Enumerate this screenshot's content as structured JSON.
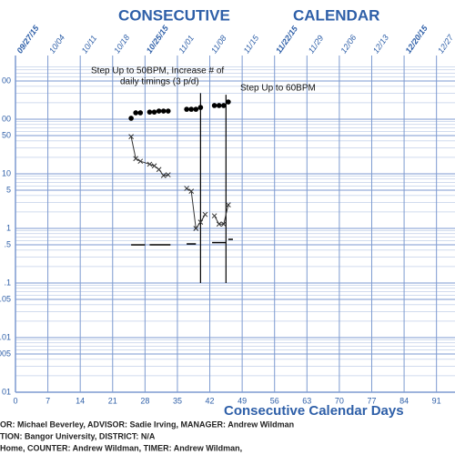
{
  "chart_data": {
    "type": "celeration",
    "title": [
      "CONSECUTIVE",
      "CALENDAR"
    ],
    "x_label": "Consecutive Calendar Days",
    "xlim": [
      0,
      95
    ],
    "xticks": [
      0,
      7,
      14,
      21,
      28,
      35,
      42,
      49,
      56,
      63,
      70,
      77,
      84,
      91
    ],
    "top_labels": [
      "09/27/15",
      "10/04",
      "10/11",
      "10/18",
      "10/25/15",
      "11/01",
      "11/08",
      "11/15",
      "11/22/15",
      "11/29",
      "12/06",
      "12/13",
      "12/20/15",
      "12/27"
    ],
    "ylim": [
      0.001,
      1000
    ],
    "log_y": true,
    "yticks": [
      {
        "value": 500,
        "label": "00"
      },
      {
        "value": 100,
        "label": "00"
      },
      50,
      10,
      5,
      1,
      {
        "value": 0.5,
        "label": ".5"
      },
      {
        "value": 0.1,
        "label": ".1"
      },
      {
        "value": 0.05,
        "label": ".05"
      },
      {
        "value": 0.01,
        "label": ".01"
      },
      {
        "value": 0.005,
        "label": ".005"
      },
      {
        "value": 0.001,
        "label": "01"
      }
    ],
    "grid": true,
    "grid_color": "#7d9ad0",
    "series": [
      {
        "marker": "dot",
        "line": false,
        "color": "#000000",
        "x": [
          25,
          26,
          27,
          29,
          30,
          31,
          32,
          33,
          37,
          38,
          39,
          40,
          43,
          44,
          45,
          46
        ],
        "values": [
          104,
          131,
          131,
          135,
          135,
          141,
          141,
          141,
          152,
          152,
          152,
          164,
          178,
          178,
          178,
          207
        ]
      },
      {
        "marker": "x",
        "line": true,
        "color": "#333333",
        "x": [
          25,
          26,
          27,
          29,
          30,
          31,
          32,
          33
        ],
        "values": [
          48,
          19,
          17,
          15,
          14,
          12,
          9.3,
          9.6
        ]
      },
      {
        "marker": "x",
        "line": true,
        "color": "#333333",
        "x": [
          37,
          38,
          39,
          40,
          41
        ],
        "values": [
          5.4,
          4.8,
          1.0,
          1.3,
          1.8
        ]
      },
      {
        "marker": "x",
        "line": true,
        "color": "#333333",
        "x": [
          43,
          44,
          45,
          46
        ],
        "values": [
          1.7,
          1.2,
          1.2,
          2.7
        ]
      }
    ],
    "floors": [
      {
        "x": [
          25,
          28
        ],
        "value": 0.5
      },
      {
        "x": [
          29,
          33.5
        ],
        "value": 0.5
      },
      {
        "x": [
          37,
          39
        ],
        "value": 0.52
      },
      {
        "x": [
          42.5,
          45.5
        ],
        "value": 0.55
      },
      {
        "x": [
          46,
          47
        ],
        "value": 0.63
      }
    ],
    "phase_lines": [
      {
        "x": 40,
        "top": 300
      },
      {
        "x": 45.5,
        "top": 280
      }
    ],
    "annotations": [
      {
        "lines": [
          "Step Up to 50BPM, Increase # of",
          "daily timings (3 p/d)"
        ]
      },
      {
        "lines": [
          "Step Up to 60BPM"
        ]
      }
    ],
    "footer": [
      "OR: Michael Beverley,  ADVISOR: Sadie Irving,  MANAGER: Andrew Wildman",
      "TION: Bangor University,  DISTRICT: N/A",
      "Home,  COUNTER: Andrew Wildman,  TIMER: Andrew Wildman,"
    ]
  }
}
